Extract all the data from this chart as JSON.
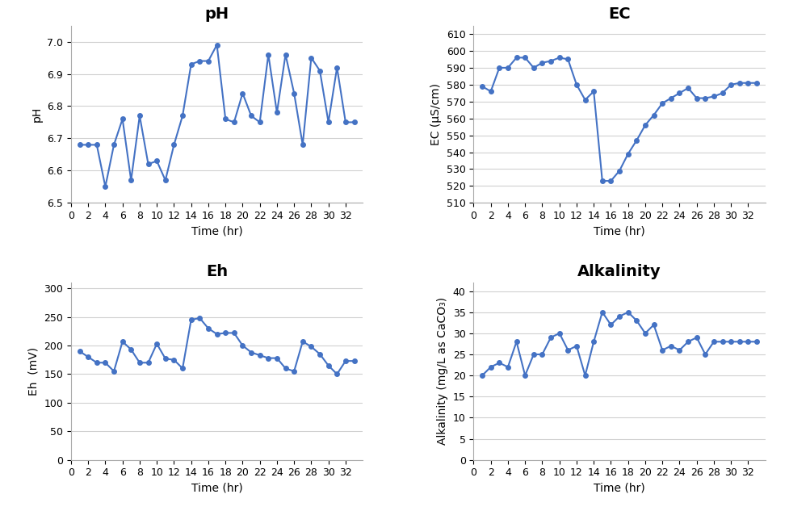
{
  "ph_time": [
    1,
    2,
    3,
    4,
    5,
    6,
    7,
    8,
    9,
    10,
    11,
    12,
    13,
    14,
    15,
    16,
    17,
    18,
    19,
    20,
    21,
    22,
    23,
    24,
    25,
    26,
    27,
    28,
    29,
    30,
    31,
    32,
    33
  ],
  "ph_values": [
    6.68,
    6.68,
    6.68,
    6.55,
    6.68,
    6.76,
    6.57,
    6.77,
    6.62,
    6.63,
    6.57,
    6.68,
    6.77,
    6.93,
    6.94,
    6.94,
    6.99,
    6.76,
    6.75,
    6.84,
    6.77,
    6.75,
    6.96,
    6.78,
    6.96,
    6.84,
    6.68,
    6.95,
    6.91,
    6.75,
    6.92,
    6.75,
    6.75
  ],
  "ec_time": [
    1,
    2,
    3,
    4,
    5,
    6,
    7,
    8,
    9,
    10,
    11,
    12,
    13,
    14,
    15,
    16,
    17,
    18,
    19,
    20,
    21,
    22,
    23,
    24,
    25,
    26,
    27,
    28,
    29,
    30,
    31,
    32,
    33
  ],
  "ec_values": [
    579,
    576,
    590,
    590,
    596,
    596,
    590,
    593,
    594,
    596,
    595,
    580,
    571,
    576,
    523,
    523,
    529,
    539,
    547,
    556,
    562,
    569,
    572,
    575,
    578,
    572,
    572,
    573,
    575,
    580,
    581,
    581,
    581
  ],
  "eh_time": [
    1,
    2,
    3,
    4,
    5,
    6,
    7,
    8,
    9,
    10,
    11,
    12,
    13,
    14,
    15,
    16,
    17,
    18,
    19,
    20,
    21,
    22,
    23,
    24,
    25,
    26,
    27,
    28,
    29,
    30,
    31,
    32,
    33
  ],
  "eh_values": [
    190,
    180,
    170,
    170,
    155,
    207,
    193,
    170,
    170,
    203,
    177,
    175,
    160,
    245,
    248,
    230,
    220,
    222,
    222,
    200,
    188,
    183,
    178,
    178,
    160,
    155,
    207,
    198,
    185,
    165,
    150,
    173,
    173
  ],
  "alk_time": [
    1,
    2,
    3,
    4,
    5,
    6,
    7,
    8,
    9,
    10,
    11,
    12,
    13,
    14,
    15,
    16,
    17,
    18,
    19,
    20,
    21,
    22,
    23,
    24,
    25,
    26,
    27,
    28,
    29,
    30,
    31,
    32,
    33
  ],
  "alk_values": [
    20,
    22,
    23,
    22,
    28,
    20,
    25,
    25,
    29,
    30,
    26,
    27,
    20,
    28,
    35,
    32,
    34,
    35,
    33,
    30,
    32,
    26,
    27,
    26,
    28,
    29,
    25,
    28,
    28,
    28,
    28,
    28,
    28
  ],
  "line_color": "#4472C4",
  "marker": "o",
  "markersize": 4,
  "linewidth": 1.5,
  "ph_title": "pH",
  "ec_title": "EC",
  "eh_title": "Eh",
  "alk_title": "Alkalinity",
  "ph_ylabel": "pH",
  "ec_ylabel": "EC (μS/cm)",
  "eh_ylabel": "Eh  (mV)",
  "alk_ylabel": "Alkalinity (mg/L as CaCO₃)",
  "xlabel": "Time (hr)",
  "ph_ylim": [
    6.5,
    7.05
  ],
  "ph_yticks": [
    6.5,
    6.6,
    6.7,
    6.8,
    6.9,
    7.0
  ],
  "ec_ylim": [
    510,
    615
  ],
  "ec_yticks": [
    510,
    520,
    530,
    540,
    550,
    560,
    570,
    580,
    590,
    600,
    610
  ],
  "eh_ylim": [
    0,
    310
  ],
  "eh_yticks": [
    0,
    50,
    100,
    150,
    200,
    250,
    300
  ],
  "alk_ylim": [
    0,
    42
  ],
  "alk_yticks": [
    0,
    5,
    10,
    15,
    20,
    25,
    30,
    35,
    40
  ],
  "xlim": [
    0,
    34
  ],
  "xticks": [
    0,
    2,
    4,
    6,
    8,
    10,
    12,
    14,
    16,
    18,
    20,
    22,
    24,
    26,
    28,
    30,
    32
  ],
  "title_fontsize": 14,
  "label_fontsize": 10,
  "tick_fontsize": 9,
  "title_fontweight": "bold",
  "grid_color": "#d0d0d0",
  "bg_color": "#ffffff"
}
